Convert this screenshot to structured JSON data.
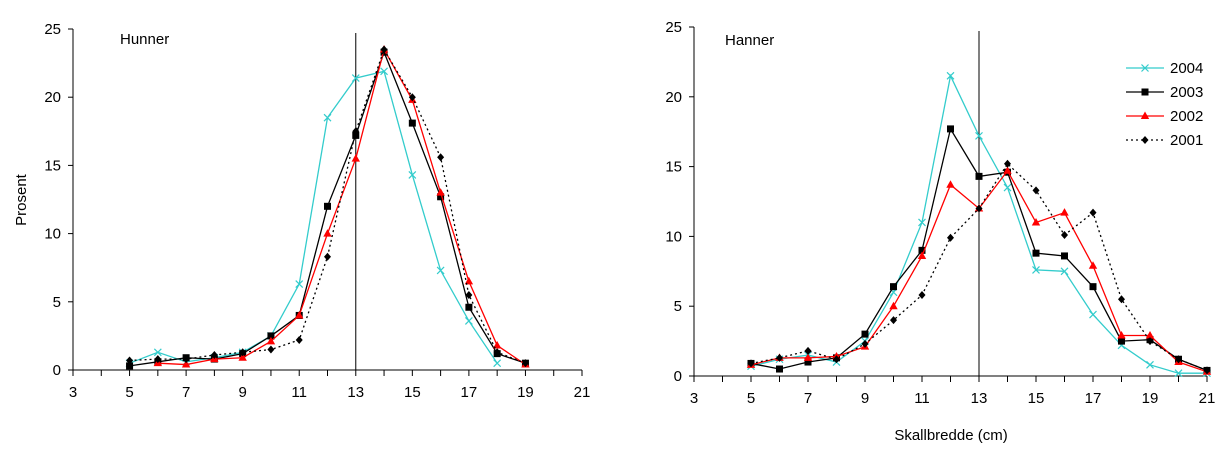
{
  "chart_data": [
    {
      "type": "line",
      "panel_label": "Hunner",
      "xlabel": "",
      "ylabel": "Prosent",
      "xlim": [
        3,
        21
      ],
      "ylim": [
        0,
        25
      ],
      "x_ticks": [
        3,
        5,
        7,
        9,
        11,
        13,
        15,
        17,
        19,
        21
      ],
      "y_ticks": [
        0,
        5,
        10,
        15,
        20,
        25
      ],
      "reference_line_x": 13,
      "grid": false,
      "legend": "none",
      "series": [
        {
          "name": "2004",
          "color": "#33CCCC",
          "marker": "x",
          "dash": "solid",
          "points": [
            [
              5,
              0.5
            ],
            [
              6,
              1.3
            ],
            [
              7,
              0.6
            ],
            [
              8,
              0.9
            ],
            [
              9,
              1.3
            ],
            [
              10,
              2.5
            ],
            [
              11,
              6.3
            ],
            [
              12,
              18.5
            ],
            [
              13,
              21.4
            ],
            [
              14,
              21.9
            ],
            [
              15,
              14.3
            ],
            [
              16,
              7.3
            ],
            [
              17,
              3.6
            ],
            [
              18,
              0.5
            ]
          ]
        },
        {
          "name": "2003",
          "color": "#000000",
          "marker": "square",
          "dash": "solid",
          "points": [
            [
              5,
              0.3
            ],
            [
              6,
              0.6
            ],
            [
              7,
              0.9
            ],
            [
              8,
              0.8
            ],
            [
              9,
              1.2
            ],
            [
              10,
              2.5
            ],
            [
              11,
              4.0
            ],
            [
              12,
              12.0
            ],
            [
              13,
              17.2
            ],
            [
              14,
              23.3
            ],
            [
              15,
              18.1
            ],
            [
              16,
              12.7
            ],
            [
              17,
              4.6
            ],
            [
              18,
              1.2
            ],
            [
              19,
              0.5
            ]
          ]
        },
        {
          "name": "2002",
          "color": "#FF0000",
          "marker": "triangle",
          "dash": "solid",
          "points": [
            [
              6,
              0.5
            ],
            [
              7,
              0.4
            ],
            [
              8,
              0.8
            ],
            [
              9,
              0.9
            ],
            [
              10,
              2.1
            ],
            [
              11,
              4.0
            ],
            [
              12,
              10.0
            ],
            [
              13,
              15.5
            ],
            [
              14,
              23.5
            ],
            [
              15,
              19.8
            ],
            [
              16,
              13.0
            ],
            [
              17,
              6.5
            ],
            [
              18,
              1.8
            ],
            [
              19,
              0.4
            ]
          ]
        },
        {
          "name": "2001",
          "color": "#000000",
          "marker": "diamond",
          "dash": "dotted",
          "points": [
            [
              5,
              0.7
            ],
            [
              6,
              0.8
            ],
            [
              7,
              0.8
            ],
            [
              8,
              1.1
            ],
            [
              9,
              1.3
            ],
            [
              10,
              1.5
            ],
            [
              11,
              2.2
            ],
            [
              12,
              8.3
            ],
            [
              13,
              17.5
            ],
            [
              14,
              23.5
            ],
            [
              15,
              20.0
            ],
            [
              16,
              15.6
            ],
            [
              17,
              5.5
            ],
            [
              18,
              1.3
            ],
            [
              19,
              0.5
            ]
          ]
        }
      ]
    },
    {
      "type": "line",
      "panel_label": "Hanner",
      "xlabel": "Skallbredde (cm)",
      "ylabel": "",
      "xlim": [
        3,
        21
      ],
      "ylim": [
        0,
        25
      ],
      "x_ticks": [
        3,
        5,
        7,
        9,
        11,
        13,
        15,
        17,
        19,
        21
      ],
      "y_ticks": [
        0,
        5,
        10,
        15,
        20,
        25
      ],
      "reference_line_x": 13,
      "grid": false,
      "legend": "right",
      "series": [
        {
          "name": "2004",
          "color": "#33CCCC",
          "marker": "x",
          "dash": "solid",
          "points": [
            [
              5,
              0.7
            ],
            [
              6,
              1.2
            ],
            [
              7,
              1.5
            ],
            [
              8,
              1.0
            ],
            [
              9,
              2.5
            ],
            [
              10,
              6.0
            ],
            [
              11,
              11.0
            ],
            [
              12,
              21.5
            ],
            [
              13,
              17.2
            ],
            [
              14,
              13.5
            ],
            [
              15,
              7.6
            ],
            [
              16,
              7.5
            ],
            [
              17,
              4.4
            ],
            [
              18,
              2.2
            ],
            [
              19,
              0.8
            ],
            [
              20,
              0.2
            ],
            [
              21,
              0.2
            ]
          ]
        },
        {
          "name": "2003",
          "color": "#000000",
          "marker": "square",
          "dash": "solid",
          "points": [
            [
              5,
              0.9
            ],
            [
              6,
              0.5
            ],
            [
              7,
              1.0
            ],
            [
              8,
              1.3
            ],
            [
              9,
              3.0
            ],
            [
              10,
              6.4
            ],
            [
              11,
              9.0
            ],
            [
              12,
              17.7
            ],
            [
              13,
              14.3
            ],
            [
              14,
              14.6
            ],
            [
              15,
              8.8
            ],
            [
              16,
              8.6
            ],
            [
              17,
              6.4
            ],
            [
              18,
              2.5
            ],
            [
              19,
              2.6
            ],
            [
              20,
              1.2
            ],
            [
              21,
              0.4
            ]
          ]
        },
        {
          "name": "2002",
          "color": "#FF0000",
          "marker": "triangle",
          "dash": "solid",
          "points": [
            [
              5,
              0.8
            ],
            [
              6,
              1.3
            ],
            [
              7,
              1.3
            ],
            [
              8,
              1.4
            ],
            [
              9,
              2.1
            ],
            [
              10,
              5.0
            ],
            [
              11,
              8.6
            ],
            [
              12,
              13.7
            ],
            [
              13,
              12.0
            ],
            [
              14,
              14.7
            ],
            [
              15,
              11.0
            ],
            [
              16,
              11.7
            ],
            [
              17,
              7.9
            ],
            [
              18,
              2.9
            ],
            [
              19,
              2.9
            ],
            [
              20,
              1.0
            ],
            [
              21,
              0.3
            ]
          ]
        },
        {
          "name": "2001",
          "color": "#000000",
          "marker": "diamond",
          "dash": "dotted",
          "points": [
            [
              5,
              0.9
            ],
            [
              6,
              1.3
            ],
            [
              7,
              1.8
            ],
            [
              8,
              1.2
            ],
            [
              9,
              2.3
            ],
            [
              10,
              4.0
            ],
            [
              11,
              5.8
            ],
            [
              12,
              9.9
            ],
            [
              13,
              12.0
            ],
            [
              14,
              15.2
            ],
            [
              15,
              13.3
            ],
            [
              16,
              10.1
            ],
            [
              17,
              11.7
            ],
            [
              18,
              5.5
            ],
            [
              19,
              2.5
            ],
            [
              20,
              1.2
            ],
            [
              21,
              0.4
            ]
          ]
        }
      ]
    }
  ]
}
